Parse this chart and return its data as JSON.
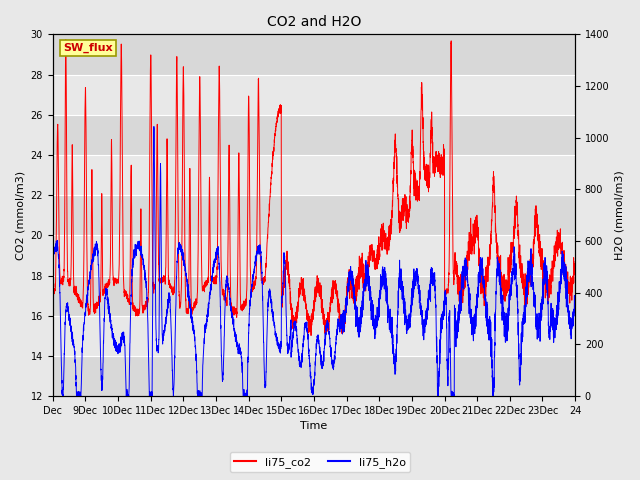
{
  "title": "CO2 and H2O",
  "xlabel": "Time",
  "ylabel_left": "CO2 (mmol/m3)",
  "ylabel_right": "H2O (mmol/m3)",
  "ylim_left": [
    12,
    30
  ],
  "ylim_right": [
    0,
    1400
  ],
  "legend_label_co2": "li75_co2",
  "legend_label_h2o": "li75_h2o",
  "annotation_text": "SW_flux",
  "annotation_color": "#cc0000",
  "annotation_bg": "#ffff99",
  "annotation_border": "#999900",
  "co2_color": "red",
  "h2o_color": "blue",
  "fig_bg_color": "#e8e8e8",
  "plot_bg_color": "#e8e8e8",
  "band_colors": [
    "#d8d8d8",
    "#e8e8e8"
  ],
  "grid_color": "#ffffff",
  "x_tick_labels": [
    "Dec",
    "9Dec",
    "10Dec",
    "11Dec",
    "12Dec",
    "13Dec",
    "14Dec",
    "15Dec",
    "16Dec",
    "17Dec",
    "18Dec",
    "19Dec",
    "20Dec",
    "21Dec",
    "22Dec",
    "23Dec",
    "24"
  ],
  "y_ticks_left": [
    12,
    14,
    16,
    18,
    20,
    22,
    24,
    26,
    28,
    30
  ],
  "y_ticks_right": [
    0,
    200,
    400,
    600,
    800,
    1000,
    1200,
    1400
  ],
  "n_days": 16,
  "title_fontsize": 10,
  "axis_label_fontsize": 8,
  "tick_fontsize": 7,
  "legend_fontsize": 8
}
